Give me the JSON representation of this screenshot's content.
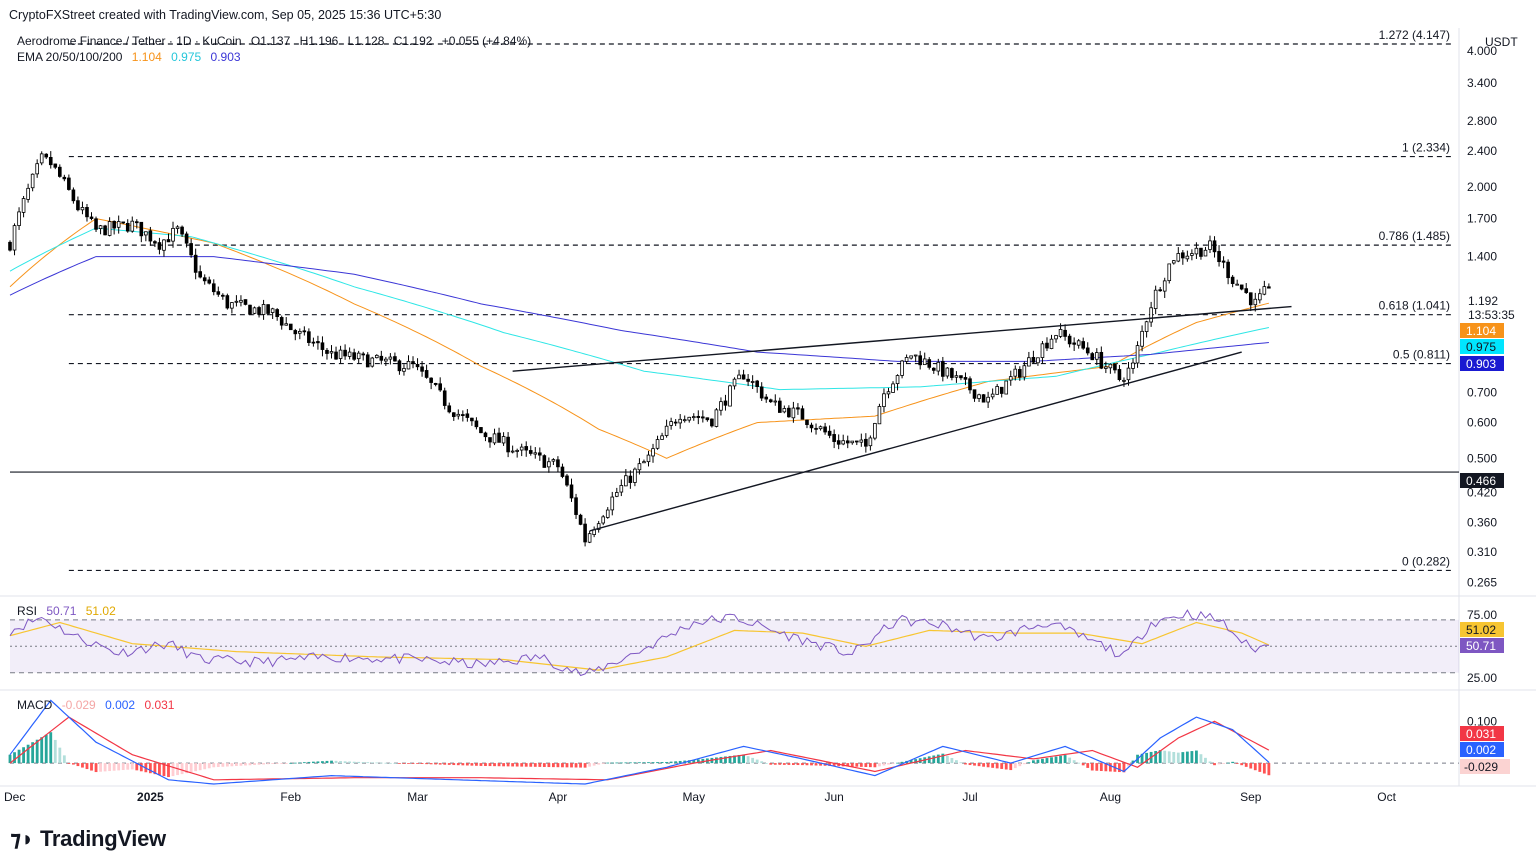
{
  "header": {
    "created_by": "CryptoFXStreet created with TradingView.com, Sep 05, 2025 15:36 UTC+5:30",
    "symbol_line": "Aerodrome Finance / Tether · 1D · KuCoin",
    "open": "O1.137",
    "high": "H1.196",
    "low": "L1.128",
    "close": "C1.192",
    "change": "+0.055 (+4.84%)",
    "ema_label": "EMA 20/50/100/200",
    "ema_values": [
      "1.104",
      "0.975",
      "0.903"
    ],
    "currency": "USDT"
  },
  "colors": {
    "up": "#26a69a",
    "down": "#ef5350",
    "candle": "#000000",
    "ema50": "#f7931a",
    "ema100": "#2ee6e6",
    "ema200": "#3b36d6",
    "rsi": "#7e57c2",
    "rsi_ma": "#f7c531",
    "macd": "#2962ff",
    "signal": "#f23645"
  },
  "badges": {
    "price": "1.192",
    "countdown": "13:53:35",
    "ema50": "1.104",
    "ema100": "0.975",
    "ema200": "0.903",
    "support": "0.466"
  },
  "footer": {
    "brand": "TradingView"
  },
  "chart_data": [
    {
      "type": "candlestick",
      "title": "Aerodrome Finance / Tether · 1D · KuCoin",
      "scale": "log",
      "ylim": [
        0.25,
        4.5
      ],
      "y_ticks": [
        "4.000",
        "3.400",
        "2.800",
        "2.400",
        "2.000",
        "1.700",
        "1.400",
        "0.700",
        "0.600",
        "0.500",
        "0.420",
        "0.360",
        "0.310",
        "0.265"
      ],
      "x_ticks": [
        "Dec",
        "2025",
        "Feb",
        "Mar",
        "Apr",
        "May",
        "Jun",
        "Jul",
        "Aug",
        "Sep",
        "Oct"
      ],
      "x_domain": [
        "2024-12-01",
        "2025-10-15"
      ],
      "fib_levels": [
        {
          "label": "1.272 (4.147)",
          "value": 4.147
        },
        {
          "label": "1 (2.334)",
          "value": 2.334
        },
        {
          "label": "0.786 (1.485)",
          "value": 1.485
        },
        {
          "label": "0.618 (1.041)",
          "value": 1.041
        },
        {
          "label": "0.5 (0.811)",
          "value": 0.811
        },
        {
          "label": "0 (0.282)",
          "value": 0.282
        }
      ],
      "horizontal_support": 0.466,
      "trendlines": [
        {
          "name": "upper-trendline",
          "from": [
            "2025-03-22",
            0.78
          ],
          "to": [
            "2025-09-10",
            1.085
          ]
        },
        {
          "name": "lower-trendline",
          "from": [
            "2025-04-08",
            0.345
          ],
          "to": [
            "2025-08-30",
            0.86
          ]
        }
      ],
      "price_anchors": [
        [
          "2024-12-01",
          1.5
        ],
        [
          "2024-12-08",
          2.3
        ],
        [
          "2024-12-10",
          2.25
        ],
        [
          "2024-12-16",
          1.8
        ],
        [
          "2024-12-20",
          1.6
        ],
        [
          "2024-12-28",
          1.65
        ],
        [
          "2025-01-03",
          1.5
        ],
        [
          "2025-01-07",
          1.6
        ],
        [
          "2025-01-12",
          1.25
        ],
        [
          "2025-01-18",
          1.1
        ],
        [
          "2025-01-28",
          1.05
        ],
        [
          "2025-02-02",
          0.95
        ],
        [
          "2025-02-10",
          0.85
        ],
        [
          "2025-02-20",
          0.82
        ],
        [
          "2025-02-28",
          0.8
        ],
        [
          "2025-03-08",
          0.65
        ],
        [
          "2025-03-15",
          0.57
        ],
        [
          "2025-03-25",
          0.51
        ],
        [
          "2025-04-01",
          0.48
        ],
        [
          "2025-04-07",
          0.33
        ],
        [
          "2025-04-14",
          0.42
        ],
        [
          "2025-04-21",
          0.5
        ],
        [
          "2025-04-28",
          0.63
        ],
        [
          "2025-05-05",
          0.61
        ],
        [
          "2025-05-12",
          0.77
        ],
        [
          "2025-05-18",
          0.66
        ],
        [
          "2025-05-25",
          0.62
        ],
        [
          "2025-06-01",
          0.55
        ],
        [
          "2025-06-08",
          0.53
        ],
        [
          "2025-06-12",
          0.7
        ],
        [
          "2025-06-18",
          0.85
        ],
        [
          "2025-06-25",
          0.78
        ],
        [
          "2025-07-05",
          0.67
        ],
        [
          "2025-07-12",
          0.78
        ],
        [
          "2025-07-20",
          0.95
        ],
        [
          "2025-07-28",
          0.85
        ],
        [
          "2025-08-03",
          0.75
        ],
        [
          "2025-08-06",
          0.8
        ],
        [
          "2025-08-10",
          1.1
        ],
        [
          "2025-08-15",
          1.4
        ],
        [
          "2025-08-23",
          1.47
        ],
        [
          "2025-08-28",
          1.25
        ],
        [
          "2025-09-02",
          1.1
        ],
        [
          "2025-09-05",
          1.192
        ]
      ],
      "ema_series": [
        {
          "name": "EMA 50",
          "value": 1.104,
          "points": [
            [
              "2024-12-01",
              1.2
            ],
            [
              "2024-12-20",
              1.7
            ],
            [
              "2025-01-15",
              1.5
            ],
            [
              "2025-02-15",
              1.1
            ],
            [
              "2025-03-15",
              0.8
            ],
            [
              "2025-04-10",
              0.58
            ],
            [
              "2025-04-25",
              0.5
            ],
            [
              "2025-05-15",
              0.6
            ],
            [
              "2025-06-10",
              0.62
            ],
            [
              "2025-07-05",
              0.74
            ],
            [
              "2025-08-01",
              0.8
            ],
            [
              "2025-08-20",
              1.0
            ],
            [
              "2025-09-05",
              1.104
            ]
          ]
        },
        {
          "name": "EMA 100",
          "value": 0.975,
          "points": [
            [
              "2024-12-01",
              1.3
            ],
            [
              "2024-12-20",
              1.62
            ],
            [
              "2025-01-10",
              1.55
            ],
            [
              "2025-02-15",
              1.2
            ],
            [
              "2025-03-20",
              0.95
            ],
            [
              "2025-04-20",
              0.78
            ],
            [
              "2025-05-20",
              0.71
            ],
            [
              "2025-06-20",
              0.72
            ],
            [
              "2025-07-20",
              0.76
            ],
            [
              "2025-08-10",
              0.85
            ],
            [
              "2025-09-05",
              0.975
            ]
          ]
        },
        {
          "name": "EMA 200",
          "value": 0.903,
          "points": [
            [
              "2024-12-01",
              1.15
            ],
            [
              "2024-12-20",
              1.4
            ],
            [
              "2025-01-15",
              1.4
            ],
            [
              "2025-02-15",
              1.28
            ],
            [
              "2025-03-15",
              1.1
            ],
            [
              "2025-04-15",
              0.96
            ],
            [
              "2025-05-15",
              0.86
            ],
            [
              "2025-06-15",
              0.82
            ],
            [
              "2025-07-15",
              0.82
            ],
            [
              "2025-08-10",
              0.85
            ],
            [
              "2025-09-05",
              0.903
            ]
          ]
        }
      ]
    },
    {
      "type": "line",
      "title": "RSI",
      "series_values": {
        "rsi": "50.71",
        "rsi_ma": "51.02"
      },
      "ylim": [
        20,
        85
      ],
      "bands": [
        70,
        50,
        30
      ],
      "y_ticks": [
        "75.00",
        "25.00"
      ],
      "rsi_anchors": [
        [
          "2024-12-01",
          62
        ],
        [
          "2024-12-08",
          72
        ],
        [
          "2024-12-15",
          58
        ],
        [
          "2024-12-25",
          45
        ],
        [
          "2025-01-05",
          52
        ],
        [
          "2025-01-12",
          40
        ],
        [
          "2025-01-25",
          38
        ],
        [
          "2025-02-10",
          42
        ],
        [
          "2025-03-01",
          40
        ],
        [
          "2025-03-15",
          36
        ],
        [
          "2025-03-28",
          42
        ],
        [
          "2025-04-07",
          28
        ],
        [
          "2025-04-20",
          48
        ],
        [
          "2025-05-01",
          68
        ],
        [
          "2025-05-10",
          72
        ],
        [
          "2025-05-20",
          60
        ],
        [
          "2025-06-05",
          44
        ],
        [
          "2025-06-15",
          70
        ],
        [
          "2025-06-25",
          66
        ],
        [
          "2025-07-05",
          55
        ],
        [
          "2025-07-18",
          68
        ],
        [
          "2025-08-01",
          48
        ],
        [
          "2025-08-04",
          42
        ],
        [
          "2025-08-10",
          68
        ],
        [
          "2025-08-18",
          75
        ],
        [
          "2025-08-25",
          70
        ],
        [
          "2025-09-01",
          48
        ],
        [
          "2025-09-05",
          50.71
        ]
      ],
      "ma_anchors": [
        [
          "2024-12-01",
          58
        ],
        [
          "2024-12-12",
          68
        ],
        [
          "2024-12-28",
          52
        ],
        [
          "2025-01-20",
          46
        ],
        [
          "2025-02-20",
          42
        ],
        [
          "2025-03-20",
          40
        ],
        [
          "2025-04-10",
          32
        ],
        [
          "2025-04-25",
          42
        ],
        [
          "2025-05-10",
          62
        ],
        [
          "2025-05-25",
          60
        ],
        [
          "2025-06-08",
          50
        ],
        [
          "2025-06-22",
          62
        ],
        [
          "2025-07-10",
          60
        ],
        [
          "2025-07-25",
          60
        ],
        [
          "2025-08-08",
          52
        ],
        [
          "2025-08-20",
          68
        ],
        [
          "2025-08-30",
          60
        ],
        [
          "2025-09-05",
          51.02
        ]
      ]
    },
    {
      "type": "bar+line",
      "title": "MACD",
      "series_values": {
        "histogram": "-0.029",
        "macd": "0.002",
        "signal": "0.031"
      },
      "ylim": [
        -0.05,
        0.17
      ],
      "y_ticks": [
        "0.100"
      ],
      "macd_anchors": [
        [
          "2024-12-01",
          0.02
        ],
        [
          "2024-12-10",
          0.15
        ],
        [
          "2024-12-20",
          0.05
        ],
        [
          "2025-01-05",
          -0.04
        ],
        [
          "2025-01-15",
          -0.05
        ],
        [
          "2025-02-10",
          -0.03
        ],
        [
          "2025-03-10",
          -0.04
        ],
        [
          "2025-04-07",
          -0.05
        ],
        [
          "2025-04-25",
          -0.01
        ],
        [
          "2025-05-12",
          0.04
        ],
        [
          "2025-05-25",
          0.01
        ],
        [
          "2025-06-10",
          -0.03
        ],
        [
          "2025-06-25",
          0.04
        ],
        [
          "2025-07-10",
          0.0
        ],
        [
          "2025-07-22",
          0.04
        ],
        [
          "2025-08-04",
          -0.02
        ],
        [
          "2025-08-12",
          0.06
        ],
        [
          "2025-08-20",
          0.11
        ],
        [
          "2025-08-28",
          0.08
        ],
        [
          "2025-09-05",
          0.002
        ]
      ],
      "signal_anchors": [
        [
          "2024-12-01",
          0.0
        ],
        [
          "2024-12-14",
          0.11
        ],
        [
          "2024-12-28",
          0.02
        ],
        [
          "2025-01-15",
          -0.04
        ],
        [
          "2025-02-15",
          -0.035
        ],
        [
          "2025-03-15",
          -0.035
        ],
        [
          "2025-04-12",
          -0.04
        ],
        [
          "2025-05-01",
          0.0
        ],
        [
          "2025-05-18",
          0.03
        ],
        [
          "2025-06-10",
          -0.02
        ],
        [
          "2025-06-30",
          0.03
        ],
        [
          "2025-07-15",
          0.01
        ],
        [
          "2025-07-28",
          0.03
        ],
        [
          "2025-08-07",
          -0.01
        ],
        [
          "2025-08-16",
          0.06
        ],
        [
          "2025-08-24",
          0.1
        ],
        [
          "2025-09-05",
          0.031
        ]
      ]
    }
  ]
}
